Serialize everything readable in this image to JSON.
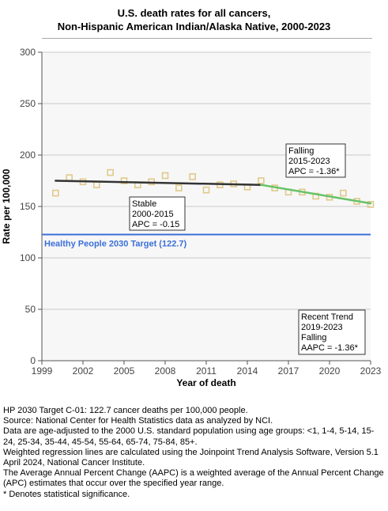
{
  "title_lines": [
    "U.S. death rates for all cancers,",
    "Non-Hispanic American Indian/Alaska Native,  2000-2023"
  ],
  "chart_data": {
    "type": "scatter",
    "xlabel": "Year of death",
    "ylabel": "Rate per 100,000",
    "xlim": [
      1999,
      2023
    ],
    "ylim": [
      0,
      300
    ],
    "x_ticks": [
      1999,
      2002,
      2005,
      2008,
      2011,
      2014,
      2017,
      2020,
      2023
    ],
    "y_ticks": [
      0,
      50,
      100,
      150,
      200,
      250,
      300
    ],
    "grid": true,
    "observed": {
      "x": [
        2000,
        2001,
        2002,
        2003,
        2004,
        2005,
        2006,
        2007,
        2008,
        2009,
        2010,
        2011,
        2012,
        2013,
        2014,
        2015,
        2016,
        2017,
        2018,
        2019,
        2020,
        2021,
        2022,
        2023
      ],
      "y": [
        163,
        178,
        174,
        171,
        183,
        175,
        171,
        174,
        180,
        168,
        179,
        166,
        171,
        172,
        169,
        175,
        168,
        164,
        164,
        160,
        159,
        163,
        155,
        152
      ],
      "color": "#e0c98a"
    },
    "trend_segments": [
      {
        "x": [
          2000,
          2015
        ],
        "y": [
          175,
          171
        ],
        "color": "#333333"
      },
      {
        "x": [
          2015,
          2023
        ],
        "y": [
          171,
          153
        ],
        "color": "#66c266"
      }
    ],
    "target_line": {
      "value": 122.7,
      "label": "Healthy People 2030 Target (122.7)",
      "color": "#3b6fd8"
    },
    "annotations": [
      {
        "lines": [
          "Stable",
          "2000-2015",
          "APC = -0.15"
        ]
      },
      {
        "lines": [
          "Falling",
          "2015-2023",
          "APC = -1.36*"
        ]
      },
      {
        "lines": [
          "Recent Trend",
          "2019-2023",
          "Falling",
          "AAPC = -1.36*"
        ]
      }
    ]
  },
  "notes": [
    "HP 2030 Target C-01: 122.7 cancer deaths per 100,000 people.",
    "Source: National Center for Health Statistics data as analyzed by NCI.",
    "Data are age-adjusted to the 2000 U.S. standard population using age groups: <1, 1-4, 5-14, 15-24, 25-34, 35-44, 45-54, 55-64, 65-74, 75-84, 85+.",
    "Weighted regression lines are calculated using the Joinpoint Trend Analysis Software, Version 5.1 April 2024, National Cancer Institute.",
    "The Average Annual Percent Change (AAPC) is a weighted average of the Annual Percent Change (APC) estimates that occur over the specified year range.",
    "* Denotes statistical significance."
  ]
}
